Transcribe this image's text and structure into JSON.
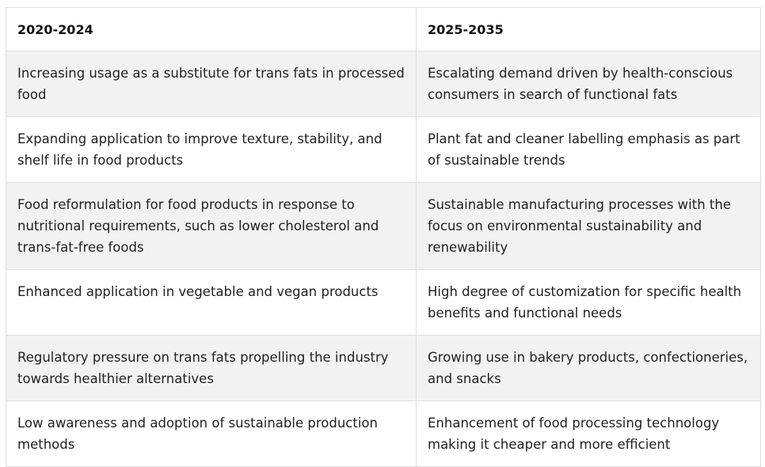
{
  "table": {
    "headers": [
      "2020-2024",
      "2025-2035"
    ],
    "rows": [
      [
        "Increasing usage as a substitute for trans fats in processed food",
        "Escalating demand driven by health-conscious consumers in search of functional fats"
      ],
      [
        "Expanding application to improve texture, stability, and shelf life in food products",
        "Plant fat and cleaner labelling emphasis as part of sustainable trends"
      ],
      [
        "Food reformulation for food products in response to nutritional requirements, such as lower cholesterol and trans-fat-free foods",
        "Sustainable manufacturing processes with the focus on environmental sustainability and renewability"
      ],
      [
        "Enhanced application in vegetable and vegan products",
        "High degree of customization for specific health benefits and functional needs"
      ],
      [
        "Regulatory pressure on trans fats propelling the industry towards healthier alternatives",
        "Growing use in bakery products, confectioneries, and snacks"
      ],
      [
        "Low awareness and adoption of sustainable production methods",
        "Enhancement of food processing technology making it cheaper and more efficient"
      ]
    ]
  }
}
